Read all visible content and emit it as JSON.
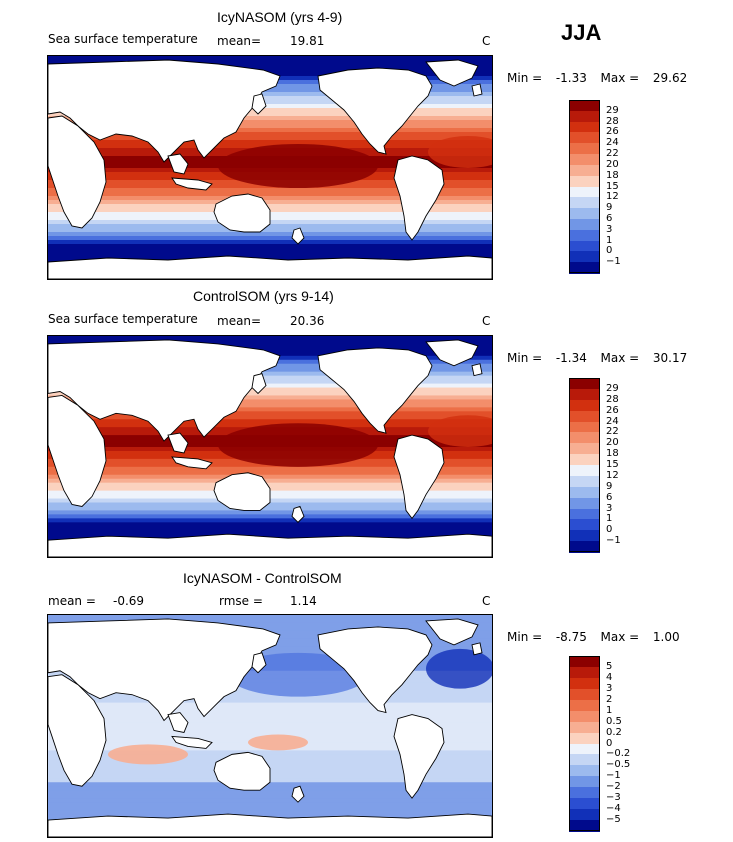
{
  "season_label": "JJA",
  "panels": [
    {
      "title": "IcyNASOM (yrs 4-9)",
      "subtitle_left": "Sea surface temperature",
      "mean_label": "mean=",
      "mean_value": "19.81",
      "rmse_label": "",
      "rmse_value": "",
      "units": "C",
      "min_label": "Min =",
      "min_value": "-1.33",
      "max_label": "Max =",
      "max_value": "29.62",
      "kind": "sst",
      "colorbar": {
        "ticks": [
          "29",
          "28",
          "26",
          "24",
          "22",
          "20",
          "18",
          "15",
          "12",
          "9",
          "6",
          "3",
          "1",
          "0",
          "-1"
        ],
        "colors": [
          "#8b0000",
          "#b81a0a",
          "#d2300f",
          "#e2502a",
          "#ec6f47",
          "#f38e6b",
          "#f7ae92",
          "#fbd2bf",
          "#eef3fb",
          "#c5d6f4",
          "#9cbaee",
          "#7196e6",
          "#4a70de",
          "#2b4ed1",
          "#1130b8",
          "#000a8c"
        ]
      }
    },
    {
      "title": "ControlSOM (yrs 9-14)",
      "subtitle_left": "Sea surface temperature",
      "mean_label": "mean=",
      "mean_value": "20.36",
      "rmse_label": "",
      "rmse_value": "",
      "units": "C",
      "min_label": "Min =",
      "min_value": "-1.34",
      "max_label": "Max =",
      "max_value": "30.17",
      "kind": "sst",
      "colorbar": {
        "ticks": [
          "29",
          "28",
          "26",
          "24",
          "22",
          "20",
          "18",
          "15",
          "12",
          "9",
          "6",
          "3",
          "1",
          "0",
          "-1"
        ],
        "colors": [
          "#8b0000",
          "#b81a0a",
          "#d2300f",
          "#e2502a",
          "#ec6f47",
          "#f38e6b",
          "#f7ae92",
          "#fbd2bf",
          "#eef3fb",
          "#c5d6f4",
          "#9cbaee",
          "#7196e6",
          "#4a70de",
          "#2b4ed1",
          "#1130b8",
          "#000a8c"
        ]
      }
    },
    {
      "title": "IcyNASOM - ControlSOM",
      "subtitle_left": "",
      "mean_label": "mean =",
      "mean_value": "-0.69",
      "rmse_label": "rmse =",
      "rmse_value": "1.14",
      "units": "C",
      "min_label": "Min =",
      "min_value": "-8.75",
      "max_label": "Max =",
      "max_value": "1.00",
      "kind": "diff",
      "colorbar": {
        "ticks": [
          "5",
          "4",
          "3",
          "2",
          "1",
          "0.5",
          "0.2",
          "0",
          "-0.2",
          "-0.5",
          "-1",
          "-2",
          "-3",
          "-4",
          "-5"
        ],
        "colors": [
          "#8b0000",
          "#b81a0a",
          "#d2300f",
          "#e2502a",
          "#ec6f47",
          "#f38e6b",
          "#f7ae92",
          "#fbd2bf",
          "#eef3fb",
          "#c5d6f4",
          "#9cbaee",
          "#7196e6",
          "#4a70de",
          "#2b4ed1",
          "#1130b8",
          "#000a8c"
        ]
      }
    }
  ],
  "chart_data": [
    {
      "type": "heatmap",
      "title": "IcyNASOM (yrs 4-9)",
      "variable": "Sea surface temperature",
      "season": "JJA",
      "mean": 19.81,
      "min": -1.33,
      "max": 29.62,
      "units": "C",
      "levels": [
        -1,
        0,
        1,
        3,
        6,
        9,
        12,
        15,
        18,
        20,
        22,
        24,
        26,
        28,
        29
      ]
    },
    {
      "type": "heatmap",
      "title": "ControlSOM (yrs 9-14)",
      "variable": "Sea surface temperature",
      "season": "JJA",
      "mean": 20.36,
      "min": -1.34,
      "max": 30.17,
      "units": "C",
      "levels": [
        -1,
        0,
        1,
        3,
        6,
        9,
        12,
        15,
        18,
        20,
        22,
        24,
        26,
        28,
        29
      ]
    },
    {
      "type": "heatmap",
      "title": "IcyNASOM - ControlSOM",
      "season": "JJA",
      "mean": -0.69,
      "rmse": 1.14,
      "min": -8.75,
      "max": 1.0,
      "units": "C",
      "levels": [
        -5,
        -4,
        -3,
        -2,
        -1,
        -0.5,
        -0.2,
        0,
        0.2,
        0.5,
        1,
        2,
        3,
        4,
        5
      ]
    }
  ]
}
